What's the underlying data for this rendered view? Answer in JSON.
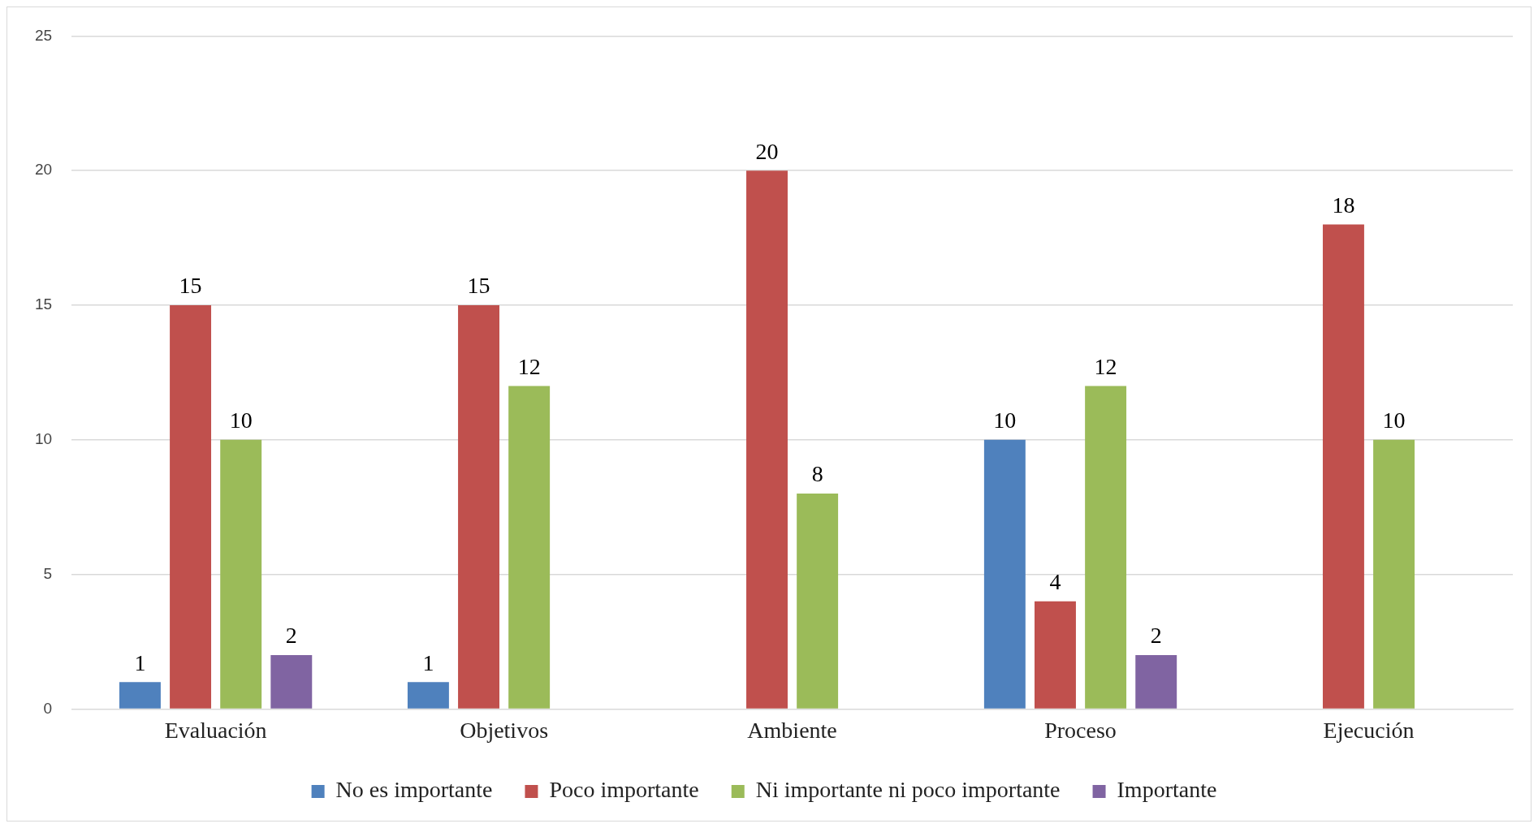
{
  "chart_data": {
    "type": "bar",
    "categories": [
      "Evaluación",
      "Objetivos",
      "Ambiente",
      "Proceso",
      "Ejecución"
    ],
    "series": [
      {
        "name": "No es importante",
        "color": "#4f81bd",
        "values": [
          1,
          1,
          null,
          10,
          null
        ]
      },
      {
        "name": "Poco importante",
        "color": "#c0504d",
        "values": [
          15,
          15,
          20,
          4,
          18
        ]
      },
      {
        "name": "Ni importante ni poco importante",
        "color": "#9bbb59",
        "values": [
          10,
          12,
          8,
          12,
          10
        ]
      },
      {
        "name": "Importante",
        "color": "#8064a2",
        "values": [
          2,
          null,
          null,
          2,
          null
        ]
      }
    ],
    "ylim": [
      0,
      25
    ],
    "yticks": [
      0,
      5,
      10,
      15,
      20,
      25
    ],
    "grid": "y",
    "legend": "bottom",
    "data_labels": true
  }
}
